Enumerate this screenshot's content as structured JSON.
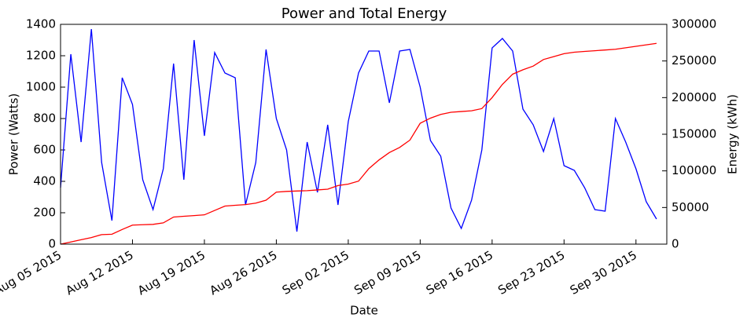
{
  "chart_data": {
    "type": "line",
    "title": "Power and Total Energy",
    "x_label": "Date",
    "y_label": "Power (Watts)",
    "y2_label": "Energy (kWh)",
    "x": [
      "2015-08-05",
      "2015-08-06",
      "2015-08-07",
      "2015-08-08",
      "2015-08-09",
      "2015-08-10",
      "2015-08-11",
      "2015-08-12",
      "2015-08-13",
      "2015-08-14",
      "2015-08-15",
      "2015-08-16",
      "2015-08-17",
      "2015-08-18",
      "2015-08-19",
      "2015-08-20",
      "2015-08-21",
      "2015-08-22",
      "2015-08-23",
      "2015-08-24",
      "2015-08-25",
      "2015-08-26",
      "2015-08-27",
      "2015-08-28",
      "2015-08-29",
      "2015-08-30",
      "2015-08-31",
      "2015-09-01",
      "2015-09-02",
      "2015-09-03",
      "2015-09-04",
      "2015-09-05",
      "2015-09-06",
      "2015-09-07",
      "2015-09-08",
      "2015-09-09",
      "2015-09-10",
      "2015-09-11",
      "2015-09-12",
      "2015-09-13",
      "2015-09-14",
      "2015-09-15",
      "2015-09-16",
      "2015-09-17",
      "2015-09-18",
      "2015-09-19",
      "2015-09-20",
      "2015-09-21",
      "2015-09-22",
      "2015-09-23",
      "2015-09-24",
      "2015-09-25",
      "2015-09-26",
      "2015-09-27",
      "2015-09-28",
      "2015-09-29",
      "2015-09-30",
      "2015-10-01",
      "2015-10-02"
    ],
    "series": [
      {
        "name": "Power",
        "color": "#0000ff",
        "axis": "y",
        "values": [
          360,
          1210,
          650,
          1370,
          520,
          150,
          1060,
          890,
          410,
          220,
          480,
          1150,
          410,
          1300,
          690,
          1220,
          1090,
          1060,
          250,
          520,
          1240,
          800,
          600,
          80,
          650,
          330,
          760,
          250,
          780,
          1090,
          1230,
          1230,
          900,
          1230,
          1240,
          1000,
          660,
          560,
          230,
          100,
          280,
          600,
          1250,
          1310,
          1230,
          860,
          760,
          590,
          800,
          500,
          470,
          360,
          220,
          210,
          800,
          650,
          480,
          270,
          160
        ]
      },
      {
        "name": "Energy",
        "color": "#ff0000",
        "axis": "y2",
        "values": [
          0,
          3000,
          6000,
          9000,
          13000,
          13500,
          20000,
          26000,
          26500,
          27000,
          29000,
          37000,
          38000,
          39000,
          40000,
          46000,
          52000,
          53000,
          54000,
          56000,
          60000,
          71000,
          72000,
          72500,
          73000,
          74000,
          75000,
          80000,
          82000,
          86000,
          103000,
          115000,
          125000,
          132000,
          142000,
          165000,
          172000,
          177000,
          180000,
          181000,
          182000,
          185000,
          200000,
          218000,
          232000,
          238000,
          243000,
          252000,
          256000,
          260000,
          262000,
          263000,
          264000,
          265000,
          266000,
          268000,
          270000,
          272000,
          274000
        ]
      }
    ],
    "xlim": [
      "2015-08-05",
      "2015-10-03"
    ],
    "xticks": [
      {
        "value": "2015-08-05",
        "label": "Aug 05 2015"
      },
      {
        "value": "2015-08-12",
        "label": "Aug 12 2015"
      },
      {
        "value": "2015-08-19",
        "label": "Aug 19 2015"
      },
      {
        "value": "2015-08-26",
        "label": "Aug 26 2015"
      },
      {
        "value": "2015-09-02",
        "label": "Sep 02 2015"
      },
      {
        "value": "2015-09-09",
        "label": "Sep 09 2015"
      },
      {
        "value": "2015-09-16",
        "label": "Sep 16 2015"
      },
      {
        "value": "2015-09-23",
        "label": "Sep 23 2015"
      },
      {
        "value": "2015-09-30",
        "label": "Sep 30 2015"
      }
    ],
    "ylim": [
      0,
      1400
    ],
    "yticks": [
      0,
      200,
      400,
      600,
      800,
      1000,
      1200,
      1400
    ],
    "y2lim": [
      0,
      300000
    ],
    "y2ticks": [
      0,
      50000,
      100000,
      150000,
      200000,
      250000,
      300000
    ]
  }
}
